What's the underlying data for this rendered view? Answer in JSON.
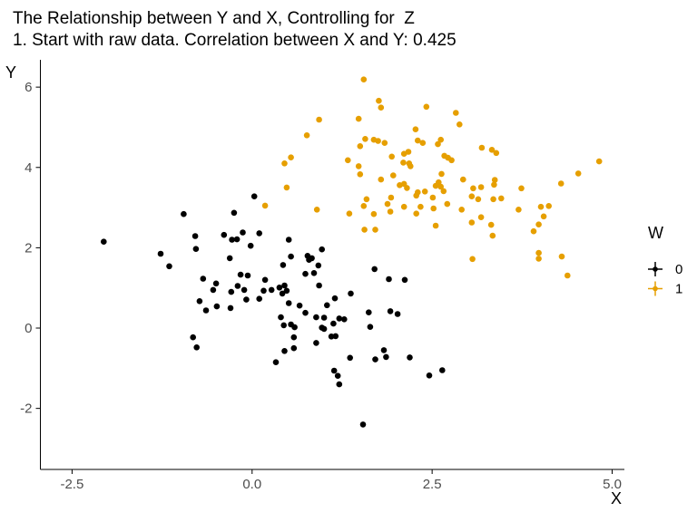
{
  "chart_data": {
    "type": "scatter",
    "title": "The Relationship between Y and X, Controlling for  Z",
    "subtitle": "1. Start with raw data. Correlation between X and Y: 0.425",
    "xlabel": "X",
    "ylabel": "Y",
    "xlim": [
      -2.94,
      5.17
    ],
    "ylim": [
      -3.52,
      6.68
    ],
    "x_tick_labels": [
      "-2.5",
      "0.0",
      "2.5",
      "5.0"
    ],
    "x_tick_values": [
      -2.5,
      0,
      2.5,
      5
    ],
    "y_tick_labels": [
      "-2",
      "0",
      "2",
      "4",
      "6"
    ],
    "y_tick_values": [
      -2,
      0,
      2,
      4,
      6
    ],
    "grid": false,
    "legend": {
      "title": "W",
      "position": "right",
      "entries": [
        {
          "label": "0",
          "color": "#000000"
        },
        {
          "label": "1",
          "color": "#E69F00"
        }
      ]
    },
    "series": [
      {
        "name": "0",
        "color": "#000000",
        "points": [
          [
            -2.06,
            2.15
          ],
          [
            -0.95,
            2.84
          ],
          [
            -0.25,
            2.87
          ],
          [
            -0.79,
            2.29
          ],
          [
            -0.39,
            2.32
          ],
          [
            -0.28,
            2.2
          ],
          [
            -0.78,
            1.97
          ],
          [
            -1.27,
            1.85
          ],
          [
            -0.31,
            1.74
          ],
          [
            -1.15,
            1.54
          ],
          [
            -0.68,
            1.23
          ],
          [
            -0.5,
            1.11
          ],
          [
            -0.54,
            0.95
          ],
          [
            -0.29,
            0.9
          ],
          [
            -0.73,
            0.67
          ],
          [
            -0.64,
            0.44
          ],
          [
            -0.49,
            0.54
          ],
          [
            -0.3,
            0.5
          ],
          [
            -0.82,
            -0.23
          ],
          [
            -0.77,
            -0.48
          ],
          [
            0.03,
            3.28
          ],
          [
            -0.13,
            2.38
          ],
          [
            -0.21,
            2.21
          ],
          [
            0.1,
            2.36
          ],
          [
            -0.02,
            2.05
          ],
          [
            0.51,
            2.2
          ],
          [
            0.97,
            1.96
          ],
          [
            0.54,
            1.78
          ],
          [
            0.43,
            1.57
          ],
          [
            0.77,
            1.8
          ],
          [
            0.83,
            1.74
          ],
          [
            0.79,
            1.7
          ],
          [
            0.92,
            1.56
          ],
          [
            0.74,
            1.35
          ],
          [
            0.86,
            1.37
          ],
          [
            -0.16,
            1.33
          ],
          [
            -0.06,
            1.31
          ],
          [
            0.18,
            1.2
          ],
          [
            -0.2,
            1.05
          ],
          [
            -0.11,
            0.95
          ],
          [
            0.16,
            0.93
          ],
          [
            0.27,
            0.95
          ],
          [
            0.38,
            1.01
          ],
          [
            0.45,
            1.06
          ],
          [
            0.48,
            0.93
          ],
          [
            0.42,
            0.86
          ],
          [
            0.1,
            0.73
          ],
          [
            -0.08,
            0.71
          ],
          [
            0.93,
            1.06
          ],
          [
            1.15,
            0.74
          ],
          [
            1.37,
            0.86
          ],
          [
            0.51,
            0.62
          ],
          [
            0.66,
            0.56
          ],
          [
            1.04,
            0.57
          ],
          [
            0.74,
            0.38
          ],
          [
            0.4,
            0.27
          ],
          [
            0.89,
            0.27
          ],
          [
            1.0,
            0.26
          ],
          [
            1.21,
            0.24
          ],
          [
            1.28,
            0.22
          ],
          [
            0.44,
            0.07
          ],
          [
            0.54,
            0.09
          ],
          [
            0.59,
            0.02
          ],
          [
            0.97,
            0.01
          ],
          [
            1.0,
            -0.02
          ],
          [
            1.13,
            0.11
          ],
          [
            1.64,
            0.03
          ],
          [
            1.62,
            0.39
          ],
          [
            1.7,
            1.47
          ],
          [
            1.9,
            1.22
          ],
          [
            2.12,
            1.2
          ],
          [
            1.92,
            0.42
          ],
          [
            2.02,
            0.35
          ],
          [
            0.58,
            -0.23
          ],
          [
            1.1,
            -0.21
          ],
          [
            1.16,
            -0.2
          ],
          [
            0.89,
            -0.37
          ],
          [
            0.58,
            -0.5
          ],
          [
            0.45,
            -0.57
          ],
          [
            0.33,
            -0.85
          ],
          [
            1.36,
            -0.74
          ],
          [
            1.71,
            -0.78
          ],
          [
            1.83,
            -0.55
          ],
          [
            1.86,
            -0.72
          ],
          [
            2.19,
            -0.73
          ],
          [
            2.46,
            -1.18
          ],
          [
            1.14,
            -1.06
          ],
          [
            1.19,
            -1.19
          ],
          [
            1.21,
            -1.4
          ],
          [
            1.54,
            -2.4
          ],
          [
            2.64,
            -1.05
          ]
        ]
      },
      {
        "name": "1",
        "color": "#E69F00",
        "points": [
          [
            1.55,
            6.19
          ],
          [
            1.76,
            5.66
          ],
          [
            1.79,
            5.49
          ],
          [
            2.42,
            5.51
          ],
          [
            0.93,
            5.19
          ],
          [
            1.48,
            5.21
          ],
          [
            2.27,
            4.95
          ],
          [
            0.76,
            4.8
          ],
          [
            1.69,
            4.69
          ],
          [
            1.75,
            4.66
          ],
          [
            1.84,
            4.61
          ],
          [
            1.57,
            4.71
          ],
          [
            2.3,
            4.67
          ],
          [
            2.37,
            4.61
          ],
          [
            2.62,
            4.69
          ],
          [
            2.58,
            4.58
          ],
          [
            2.83,
            5.36
          ],
          [
            2.88,
            5.07
          ],
          [
            3.19,
            4.49
          ],
          [
            3.33,
            4.44
          ],
          [
            3.39,
            4.36
          ],
          [
            2.11,
            4.34
          ],
          [
            2.17,
            4.39
          ],
          [
            1.94,
            4.27
          ],
          [
            0.54,
            4.25
          ],
          [
            0.45,
            4.1
          ],
          [
            1.33,
            4.18
          ],
          [
            2.1,
            4.12
          ],
          [
            2.18,
            4.1
          ],
          [
            2.2,
            4.03
          ],
          [
            1.48,
            4.03
          ],
          [
            1.5,
            3.83
          ],
          [
            1.5,
            4.53
          ],
          [
            1.96,
            3.8
          ],
          [
            0.48,
            3.5
          ],
          [
            1.79,
            3.7
          ],
          [
            2.05,
            3.56
          ],
          [
            2.11,
            3.59
          ],
          [
            2.15,
            3.49
          ],
          [
            2.3,
            3.38
          ],
          [
            2.4,
            3.4
          ],
          [
            2.55,
            3.54
          ],
          [
            2.62,
            3.52
          ],
          [
            2.67,
            4.29
          ],
          [
            2.72,
            4.24
          ],
          [
            2.77,
            4.18
          ],
          [
            4.82,
            4.15
          ],
          [
            2.63,
            3.84
          ],
          [
            4.53,
            3.85
          ],
          [
            2.93,
            3.7
          ],
          [
            2.59,
            3.63
          ],
          [
            3.37,
            3.69
          ],
          [
            3.36,
            3.57
          ],
          [
            4.29,
            3.6
          ],
          [
            3.07,
            3.48
          ],
          [
            3.18,
            3.51
          ],
          [
            2.66,
            3.41
          ],
          [
            3.74,
            3.48
          ],
          [
            2.51,
            3.25
          ],
          [
            3.05,
            3.28
          ],
          [
            3.14,
            3.21
          ],
          [
            2.71,
            3.09
          ],
          [
            3.35,
            3.21
          ],
          [
            3.46,
            3.23
          ],
          [
            2.52,
            2.98
          ],
          [
            2.91,
            2.95
          ],
          [
            3.7,
            2.95
          ],
          [
            4.01,
            3.02
          ],
          [
            4.12,
            3.04
          ],
          [
            3.18,
            2.76
          ],
          [
            4.05,
            2.78
          ],
          [
            2.55,
            2.55
          ],
          [
            3.05,
            2.63
          ],
          [
            3.32,
            2.57
          ],
          [
            3.98,
            2.58
          ],
          [
            3.91,
            2.41
          ],
          [
            3.34,
            2.3
          ],
          [
            3.98,
            1.87
          ],
          [
            3.98,
            1.73
          ],
          [
            4.3,
            1.78
          ],
          [
            3.06,
            1.72
          ],
          [
            4.38,
            1.31
          ],
          [
            0.18,
            3.05
          ],
          [
            0.9,
            2.95
          ],
          [
            1.35,
            2.85
          ],
          [
            1.59,
            3.21
          ],
          [
            1.55,
            3.04
          ],
          [
            1.69,
            2.84
          ],
          [
            1.93,
            3.25
          ],
          [
            1.88,
            3.09
          ],
          [
            1.92,
            2.9
          ],
          [
            2.11,
            3.02
          ],
          [
            2.28,
            3.3
          ],
          [
            2.34,
            3.02
          ],
          [
            2.28,
            2.85
          ],
          [
            1.56,
            2.45
          ],
          [
            1.71,
            2.45
          ]
        ]
      }
    ],
    "style": {
      "point_radius": 3.3,
      "tick_label_color": "#4d4d4d",
      "axis_color": "#000000",
      "background": "#ffffff"
    }
  }
}
